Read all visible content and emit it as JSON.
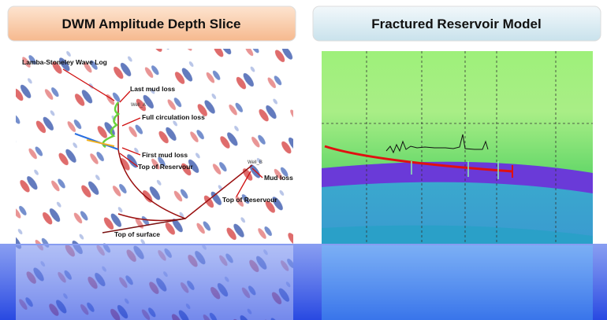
{
  "panels": [
    {
      "title": "DWM Amplitude Depth Slice",
      "labels": [
        "Lamba-Stoneley Wave Log",
        "Last mud loss",
        "Well_A",
        "Full  circulation loss",
        "First mud loss",
        "Top of Reservour",
        "Well_B",
        "Mud loss",
        "Top of Reservour",
        "Top of surface"
      ]
    },
    {
      "title": "Fractured Reservoir Model"
    }
  ]
}
